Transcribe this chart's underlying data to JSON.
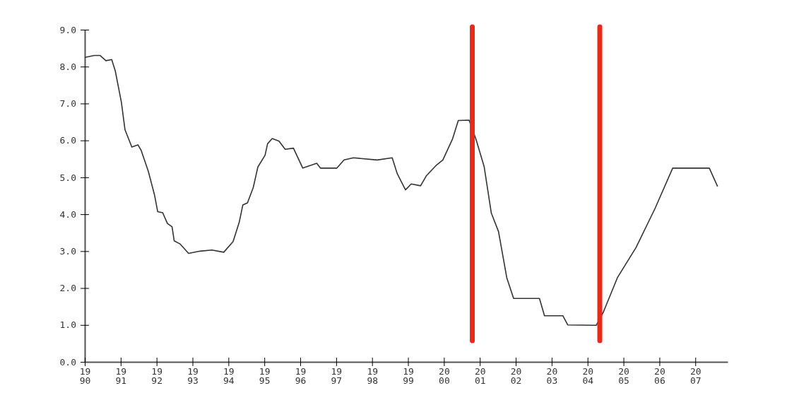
{
  "chart_data": {
    "type": "line",
    "x": [
      1990.0,
      1990.26,
      1990.43,
      1990.59,
      1990.75,
      1990.85,
      1991.02,
      1991.12,
      1991.31,
      1991.48,
      1991.57,
      1991.77,
      1991.94,
      1992.03,
      1992.17,
      1992.3,
      1992.43,
      1992.49,
      1992.66,
      1992.89,
      1993.21,
      1993.54,
      1993.87,
      1994.13,
      1994.3,
      1994.4,
      1994.53,
      1994.69,
      1994.82,
      1995.02,
      1995.09,
      1995.22,
      1995.41,
      1995.58,
      1995.81,
      1996.07,
      1996.46,
      1996.56,
      1997.02,
      1997.22,
      1997.48,
      1998.14,
      1998.56,
      1998.7,
      1998.93,
      1999.09,
      1999.35,
      1999.51,
      1999.78,
      1999.97,
      2000.24,
      2000.4,
      2000.7,
      2000.89,
      2001.12,
      2001.32,
      2001.52,
      2001.75,
      2001.94,
      2002.66,
      2002.8,
      2003.31,
      2003.45,
      2004.24,
      2004.44,
      2004.83,
      2005.35,
      2005.88,
      2006.37,
      2007.39,
      2007.62
    ],
    "series": [
      {
        "color": "#333333",
        "values": [
          8.25,
          8.3,
          8.3,
          8.16,
          8.19,
          7.88,
          7.03,
          6.29,
          5.82,
          5.88,
          5.73,
          5.16,
          4.53,
          4.07,
          4.04,
          3.75,
          3.66,
          3.28,
          3.19,
          2.94,
          3.0,
          3.03,
          2.97,
          3.26,
          3.78,
          4.25,
          4.31,
          4.72,
          5.28,
          5.6,
          5.91,
          6.05,
          5.98,
          5.76,
          5.79,
          5.25,
          5.38,
          5.25,
          5.25,
          5.47,
          5.53,
          5.47,
          5.53,
          5.1,
          4.66,
          4.82,
          4.77,
          5.04,
          5.32,
          5.47,
          6.04,
          6.54,
          6.55,
          6.04,
          5.29,
          4.03,
          3.53,
          2.28,
          1.72,
          1.72,
          1.25,
          1.25,
          1.0,
          0.99,
          1.35,
          2.28,
          3.1,
          4.16,
          5.25,
          5.25,
          4.75
        ]
      }
    ],
    "xlim": [
      1990,
      2007.9
    ],
    "xticks": [
      1990,
      1991,
      1992,
      1993,
      1994,
      1995,
      1996,
      1997,
      1998,
      1999,
      2000,
      2001,
      2002,
      2003,
      2004,
      2005,
      2006,
      2007
    ],
    "ylim": [
      0,
      9
    ],
    "yticks": [
      {
        "value": 0,
        "label": "0.0"
      },
      {
        "value": 1,
        "label": "1.0"
      },
      {
        "value": 2,
        "label": "2.0"
      },
      {
        "value": 3,
        "label": "3.0"
      },
      {
        "value": 4,
        "label": "4.0"
      },
      {
        "value": 5,
        "label": "5.0"
      },
      {
        "value": 6,
        "label": "6.0"
      },
      {
        "value": 7,
        "label": "7.0"
      },
      {
        "value": 8,
        "label": "8.0"
      },
      {
        "value": 9,
        "label": "9.0"
      }
    ],
    "ref_lines": [
      {
        "axis": "x",
        "value": 2000.79,
        "color": "#e8291c"
      },
      {
        "axis": "x",
        "value": 2004.34,
        "color": "#e8291c"
      }
    ],
    "grid": false,
    "marker": "none",
    "line_style": "solid"
  }
}
